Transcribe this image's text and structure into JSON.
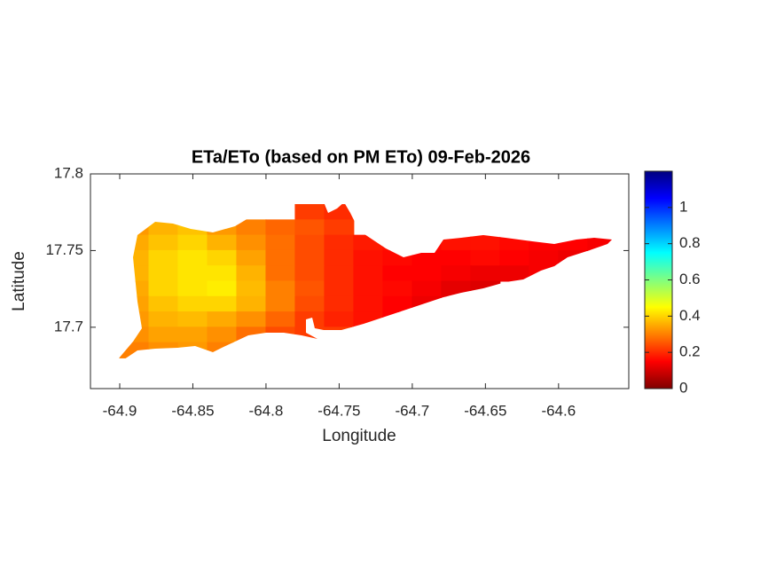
{
  "chart_data": {
    "type": "heatmap",
    "title": "ETa/ETo (based on PM ETo) 09-Feb-2026",
    "xlabel": "Longitude",
    "ylabel": "Latitude",
    "xlim": [
      -64.92,
      -64.552
    ],
    "ylim": [
      17.66,
      17.8
    ],
    "xticks": [
      -64.9,
      -64.85,
      -64.8,
      -64.75,
      -64.7,
      -64.65,
      -64.6
    ],
    "yticks": [
      17.7,
      17.75,
      17.8
    ],
    "grid": false,
    "colormap": "jet",
    "colormap_reversed": true,
    "clim": [
      0,
      1.2
    ],
    "colorbar_ticks": [
      0,
      0.2,
      0.4,
      0.6,
      0.8,
      1
    ],
    "lon_edges": [
      -64.9,
      -64.88,
      -64.86,
      -64.84,
      -64.82,
      -64.8,
      -64.78,
      -64.76,
      -64.74,
      -64.72,
      -64.7,
      -64.68,
      -64.66,
      -64.64,
      -64.62,
      -64.6,
      -64.58,
      -64.56
    ],
    "lat_edges": [
      17.78,
      17.77,
      17.76,
      17.75,
      17.74,
      17.73,
      17.72,
      17.71,
      17.7,
      17.69,
      17.68
    ],
    "z": [
      [
        null,
        null,
        null,
        null,
        null,
        null,
        0.22,
        0.2,
        null,
        null,
        null,
        null,
        null,
        null,
        null,
        null,
        null
      ],
      [
        0.33,
        0.36,
        0.38,
        0.33,
        0.3,
        0.27,
        0.25,
        0.22,
        null,
        null,
        null,
        null,
        null,
        null,
        null,
        null,
        null
      ],
      [
        0.35,
        0.38,
        0.4,
        0.36,
        0.32,
        0.28,
        0.24,
        0.2,
        0.18,
        0.17,
        0.16,
        0.17,
        0.17,
        0.16,
        0.15,
        0.15,
        0.14
      ],
      [
        0.36,
        0.4,
        0.42,
        0.4,
        0.34,
        0.28,
        0.24,
        0.2,
        0.17,
        0.16,
        0.15,
        0.15,
        0.16,
        0.15,
        0.14,
        0.13,
        0.14
      ],
      [
        0.36,
        0.4,
        0.42,
        0.42,
        0.36,
        0.28,
        0.24,
        0.2,
        0.17,
        0.15,
        0.15,
        0.14,
        0.13,
        0.13,
        0.14,
        null,
        null
      ],
      [
        0.35,
        0.4,
        0.42,
        0.43,
        0.37,
        0.3,
        0.25,
        0.2,
        0.17,
        0.16,
        0.14,
        0.12,
        0.11,
        null,
        null,
        null,
        null
      ],
      [
        0.34,
        0.38,
        0.4,
        0.4,
        0.36,
        0.3,
        0.24,
        0.2,
        0.17,
        0.15,
        0.13,
        0.13,
        null,
        null,
        null,
        null,
        null
      ],
      [
        0.33,
        0.36,
        0.37,
        0.35,
        0.32,
        0.27,
        0.22,
        0.19,
        0.17,
        0.15,
        null,
        null,
        null,
        null,
        null,
        null,
        null
      ],
      [
        0.32,
        0.34,
        0.34,
        0.32,
        0.28,
        0.24,
        0.22,
        0.22,
        null,
        null,
        null,
        null,
        null,
        null,
        null,
        null,
        null
      ],
      [
        0.3,
        0.32,
        0.33,
        0.3,
        null,
        null,
        null,
        null,
        null,
        null,
        null,
        null,
        null,
        null,
        null,
        null,
        null
      ]
    ]
  }
}
